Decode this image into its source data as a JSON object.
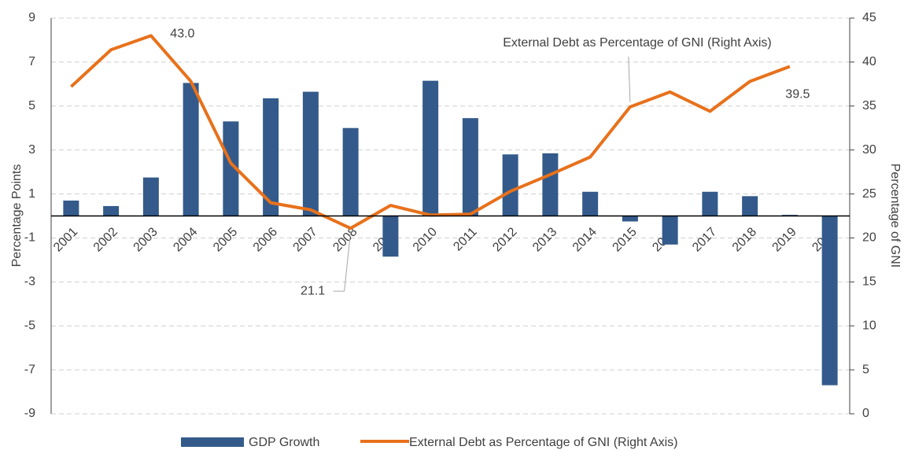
{
  "chart_data": {
    "type": "bar-line",
    "categories": [
      "2001",
      "2002",
      "2003",
      "2004",
      "2005",
      "2006",
      "2007",
      "2008",
      "2009",
      "2010",
      "2011",
      "2012",
      "2013",
      "2014",
      "2015",
      "2016",
      "2017",
      "2018",
      "2019",
      "2020"
    ],
    "series": [
      {
        "name": "GDP Growth",
        "color": "#335a8a",
        "type": "bar",
        "values": [
          0.7,
          0.45,
          1.75,
          6.05,
          4.3,
          5.35,
          5.65,
          4.0,
          -1.85,
          6.15,
          4.45,
          2.8,
          2.85,
          1.1,
          -0.25,
          -1.3,
          1.1,
          0.9,
          0.05,
          -7.7
        ]
      },
      {
        "name": "External Debt as Percentage of GNI (Right Axis)",
        "color": "#e8711b",
        "type": "line",
        "axis": "y2",
        "values": [
          37.2,
          41.4,
          43.0,
          37.8,
          28.5,
          24.0,
          23.2,
          21.1,
          23.7,
          22.6,
          22.7,
          25.3,
          27.2,
          29.2,
          34.9,
          36.6,
          34.4,
          37.8,
          39.5,
          null
        ],
        "value_labels": [
          null,
          null,
          "43.0",
          null,
          null,
          null,
          null,
          "21.1",
          null,
          null,
          null,
          null,
          null,
          null,
          null,
          null,
          null,
          null,
          "39.5",
          null
        ]
      }
    ],
    "annotation": "External Debt as Percentage of GNI (Right Axis)",
    "ylabel": "Percentage Points",
    "y2label": "Percentage of GNI",
    "ylim": [
      -9,
      9
    ],
    "yticks": [
      9,
      7,
      5,
      3,
      1,
      -1,
      -3,
      -5,
      -7,
      -9
    ],
    "y2lim": [
      0,
      45
    ],
    "y2ticks": [
      0,
      5,
      10,
      15,
      20,
      25,
      30,
      35,
      40,
      45
    ],
    "grid": true,
    "legend": "bottom"
  }
}
